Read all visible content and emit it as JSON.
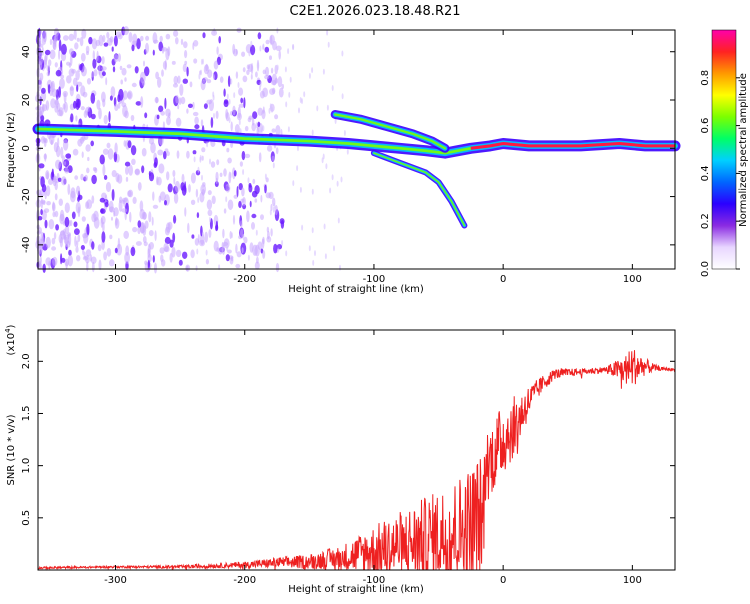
{
  "title": "C2E1.2026.023.18.48.R21",
  "colors": {
    "snr_line": "#ee2020",
    "ridge_core": "#ff1744",
    "scatter": "#6a1aff",
    "colorbar": [
      "#ffffff",
      "#e8d6ff",
      "#8a2be2",
      "#2b00ff",
      "#0066ff",
      "#00d0ff",
      "#00ff66",
      "#7cff00",
      "#ffff00",
      "#ff9900",
      "#ff2222",
      "#ff00aa"
    ]
  },
  "chart_data": [
    {
      "type": "heatmap",
      "title": "C2E1.2026.023.18.48.R21",
      "xlabel": "Height of straight line (km)",
      "ylabel": "Frequency (Hz)",
      "xlim": [
        -360,
        133
      ],
      "ylim": [
        -50,
        49
      ],
      "xticks": [
        -300,
        -200,
        -100,
        0,
        100
      ],
      "yticks": [
        -40,
        -20,
        0,
        20,
        40
      ],
      "colorbar": {
        "label": "Normalized spectral amplitude",
        "range": [
          0.0,
          1.0
        ],
        "ticks": [
          0.0,
          0.2,
          0.4,
          0.6,
          0.8
        ]
      },
      "main_ridge": {
        "x": [
          -360,
          -300,
          -250,
          -200,
          -150,
          -120,
          -100,
          -80,
          -60,
          -45,
          -35,
          -25,
          -10,
          0,
          20,
          60,
          90,
          110,
          133
        ],
        "y": [
          8,
          7,
          6,
          4,
          3,
          2,
          1,
          0,
          -1,
          -2,
          -1,
          0,
          1,
          2,
          1,
          1,
          2,
          1,
          1
        ]
      },
      "upper_branch": {
        "x": [
          -130,
          -110,
          -90,
          -70,
          -55,
          -45
        ],
        "y": [
          14,
          12,
          9,
          6,
          3,
          0
        ]
      },
      "lower_branch": {
        "x": [
          -100,
          -80,
          -60,
          -50,
          -40,
          -30
        ],
        "y": [
          -2,
          -6,
          -10,
          -14,
          -22,
          -32
        ]
      }
    },
    {
      "type": "line",
      "xlabel": "Height of straight line (km)",
      "ylabel": "SNR (10 * v/v)",
      "yscale_label": "(x10",
      "yscale_exp": "4",
      "yscale_close": ")",
      "xlim": [
        -360,
        133
      ],
      "ylim": [
        0,
        2.3
      ],
      "xticks": [
        -300,
        -200,
        -100,
        0,
        100
      ],
      "yticks": [
        0.5,
        1.0,
        1.5,
        2.0
      ],
      "ytick_labels": [
        "0.5",
        "1.0",
        "1.5",
        "2.0"
      ],
      "envelope": {
        "x": [
          -360,
          -300,
          -250,
          -200,
          -175,
          -150,
          -125,
          -100,
          -75,
          -50,
          -30,
          -15,
          -14,
          -10,
          0,
          10,
          20,
          30,
          40,
          60,
          80,
          95,
          100,
          110,
          120,
          133
        ],
        "mean": [
          0.02,
          0.03,
          0.03,
          0.05,
          0.07,
          0.08,
          0.12,
          0.18,
          0.25,
          0.32,
          0.4,
          0.55,
          0.98,
          1.05,
          1.25,
          1.4,
          1.62,
          1.78,
          1.88,
          1.9,
          1.92,
          1.92,
          1.95,
          1.95,
          1.93,
          1.92
        ],
        "noise": [
          0.01,
          0.01,
          0.015,
          0.03,
          0.05,
          0.07,
          0.12,
          0.25,
          0.35,
          0.45,
          0.55,
          0.6,
          0.35,
          0.35,
          0.35,
          0.28,
          0.15,
          0.08,
          0.05,
          0.03,
          0.03,
          0.15,
          0.2,
          0.08,
          0.02,
          0.01
        ]
      }
    }
  ]
}
